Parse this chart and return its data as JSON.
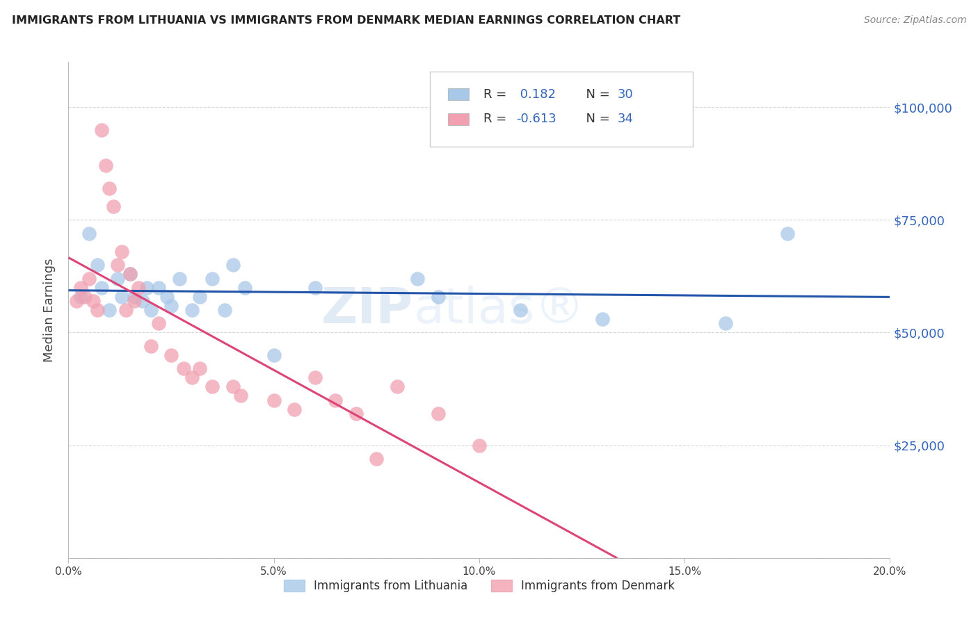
{
  "title": "IMMIGRANTS FROM LITHUANIA VS IMMIGRANTS FROM DENMARK MEDIAN EARNINGS CORRELATION CHART",
  "source": "Source: ZipAtlas.com",
  "ylabel": "Median Earnings",
  "xlim": [
    0.0,
    0.2
  ],
  "ylim": [
    0,
    110000
  ],
  "yticks": [
    0,
    25000,
    50000,
    75000,
    100000
  ],
  "ytick_labels": [
    "",
    "$25,000",
    "$50,000",
    "$75,000",
    "$100,000"
  ],
  "xticks": [
    0.0,
    0.05,
    0.1,
    0.15,
    0.2
  ],
  "xtick_labels": [
    "0.0%",
    "5.0%",
    "10.0%",
    "15.0%",
    "20.0%"
  ],
  "legend1_r": "0.182",
  "legend1_n": "30",
  "legend2_r": "-0.613",
  "legend2_n": "34",
  "legend_bottom_label1": "Immigrants from Lithuania",
  "legend_bottom_label2": "Immigrants from Denmark",
  "blue_color": "#A8C8E8",
  "pink_color": "#F0A0B0",
  "line_blue": "#2255AA",
  "line_pink": "#DD4477",
  "watermark_color": "#C8DCF0",
  "background_color": "#FFFFFF",
  "grid_color": "#CCCCCC",
  "axis_label_color": "#3366BB",
  "blue_dots_x": [
    0.003,
    0.005,
    0.007,
    0.008,
    0.01,
    0.012,
    0.013,
    0.015,
    0.016,
    0.018,
    0.019,
    0.02,
    0.022,
    0.024,
    0.025,
    0.027,
    0.03,
    0.032,
    0.035,
    0.038,
    0.04,
    0.043,
    0.05,
    0.06,
    0.085,
    0.09,
    0.11,
    0.13,
    0.16,
    0.175
  ],
  "blue_dots_y": [
    58000,
    72000,
    65000,
    60000,
    55000,
    62000,
    58000,
    63000,
    58000,
    57000,
    60000,
    55000,
    60000,
    58000,
    56000,
    62000,
    55000,
    58000,
    62000,
    55000,
    65000,
    60000,
    45000,
    60000,
    62000,
    58000,
    55000,
    53000,
    52000,
    72000
  ],
  "pink_dots_x": [
    0.002,
    0.003,
    0.004,
    0.005,
    0.006,
    0.007,
    0.008,
    0.009,
    0.01,
    0.011,
    0.012,
    0.013,
    0.014,
    0.015,
    0.016,
    0.017,
    0.02,
    0.022,
    0.025,
    0.028,
    0.03,
    0.032,
    0.035,
    0.04,
    0.042,
    0.05,
    0.055,
    0.06,
    0.065,
    0.07,
    0.075,
    0.08,
    0.09,
    0.1
  ],
  "pink_dots_y": [
    57000,
    60000,
    58000,
    62000,
    57000,
    55000,
    95000,
    87000,
    82000,
    78000,
    65000,
    68000,
    55000,
    63000,
    57000,
    60000,
    47000,
    52000,
    45000,
    42000,
    40000,
    42000,
    38000,
    38000,
    36000,
    35000,
    33000,
    40000,
    35000,
    32000,
    22000,
    38000,
    32000,
    25000
  ]
}
